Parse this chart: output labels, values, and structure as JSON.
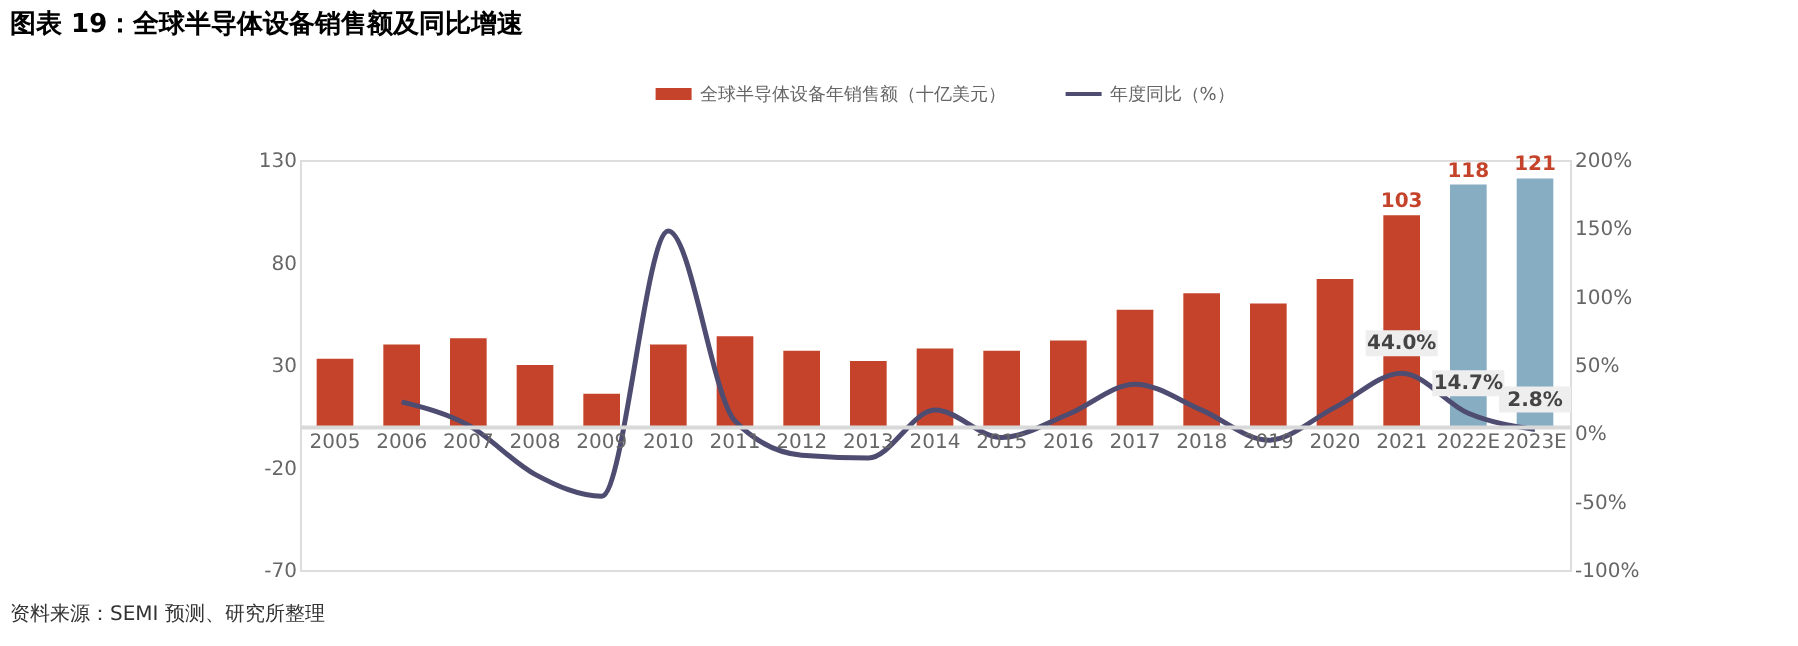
{
  "chart_data": {
    "type": "bar",
    "title": "图表 19：全球半导体设备销售额及同比增速",
    "categories": [
      "2005",
      "2006",
      "2007",
      "2008",
      "2009",
      "2010",
      "2011",
      "2012",
      "2013",
      "2014",
      "2015",
      "2016",
      "2017",
      "2018",
      "2019",
      "2020",
      "2021",
      "2022E",
      "2023E"
    ],
    "series": [
      {
        "name": "全球半导体设备年销售额（十亿美元）",
        "color": "#c5432a",
        "colors": [
          "#c5432a",
          "#c5432a",
          "#c5432a",
          "#c5432a",
          "#c5432a",
          "#c5432a",
          "#c5432a",
          "#c5432a",
          "#c5432a",
          "#c5432a",
          "#c5432a",
          "#c5432a",
          "#c5432a",
          "#c5432a",
          "#c5432a",
          "#c5432a",
          "#c5432a",
          "#87adc2",
          "#87adc2"
        ],
        "values": [
          33,
          40,
          43,
          30,
          16,
          40,
          44,
          37,
          32,
          38,
          37,
          42,
          57,
          65,
          60,
          72,
          103,
          118,
          121
        ],
        "value_labels": [
          null,
          null,
          null,
          null,
          null,
          null,
          null,
          null,
          null,
          null,
          null,
          null,
          null,
          null,
          null,
          null,
          "103",
          "118",
          "121"
        ]
      },
      {
        "name": "年度同比（%）",
        "type": "line",
        "axis": "y2",
        "color": "#4f4c72",
        "values": [
          null,
          23,
          6,
          -30,
          -46,
          148,
          9,
          -16,
          -18,
          17,
          -3,
          14,
          36,
          17,
          -5,
          19,
          44.0,
          14.7,
          2.8
        ],
        "value_labels": [
          null,
          null,
          null,
          null,
          null,
          null,
          null,
          null,
          null,
          null,
          null,
          null,
          null,
          null,
          null,
          null,
          "44.0%",
          "14.7%",
          "2.8%"
        ]
      }
    ],
    "ylim": [
      -70,
      130
    ],
    "yticks": [
      -70,
      -20,
      30,
      80,
      130
    ],
    "y2lim": [
      -100,
      200
    ],
    "y2ticks": [
      {
        "value": -100,
        "label": "-100%"
      },
      {
        "value": -50,
        "label": "-50%"
      },
      {
        "value": 0,
        "label": "0%"
      },
      {
        "value": 50,
        "label": "50%"
      },
      {
        "value": 100,
        "label": "100%"
      },
      {
        "value": 150,
        "label": "150%"
      },
      {
        "value": 200,
        "label": "200%"
      }
    ],
    "grid": false,
    "legend": "top",
    "annotations": [
      "资料来源：SEMI 预测、研究所整理"
    ]
  }
}
